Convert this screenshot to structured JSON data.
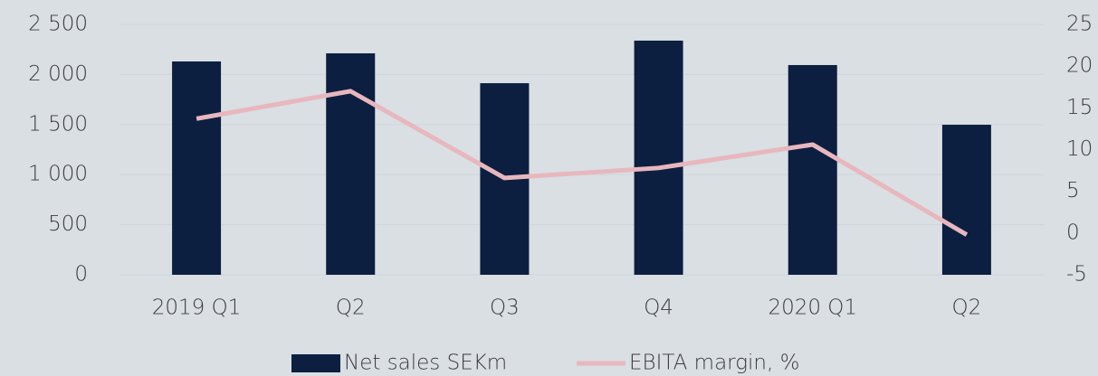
{
  "chart_data": {
    "type": "bar",
    "categories": [
      "2019 Q1",
      "Q2",
      "Q3",
      "Q4",
      "2020 Q1",
      "Q2"
    ],
    "series": [
      {
        "name": "Net sales SEKm",
        "type": "bar",
        "color": "#0c1f40",
        "values": [
          2130,
          2211,
          1913,
          2338,
          2094,
          1498
        ]
      },
      {
        "name": "EBITA margin, %",
        "type": "line",
        "axis": "y2",
        "color": "#e8b7be",
        "values": [
          13.7,
          17.0,
          6.6,
          7.8,
          10.6,
          -0.2
        ]
      }
    ],
    "ylim": [
      0,
      2500
    ],
    "yticks": [
      0,
      500,
      {
        "value": 1000,
        "label": "1 000"
      },
      {
        "value": 1500,
        "label": "1 500"
      },
      {
        "value": 2000,
        "label": "2 000"
      },
      {
        "value": 2500,
        "label": "2 500"
      }
    ],
    "y2lim": [
      -5,
      25
    ],
    "y2ticks": [
      -5,
      0,
      5,
      10,
      15,
      20,
      25
    ],
    "grid": true,
    "legend": "bottom"
  }
}
